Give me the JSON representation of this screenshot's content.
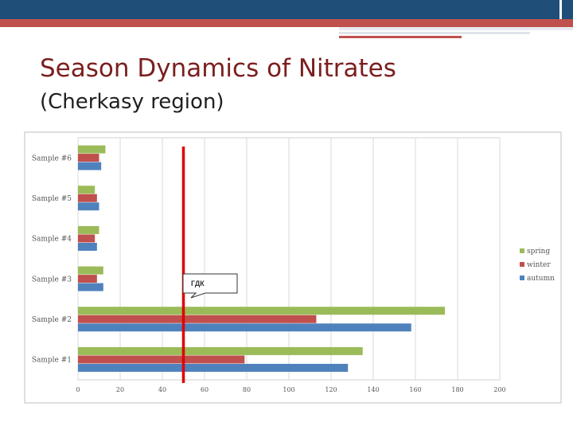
{
  "slide": {
    "title_line1": "Season Dynamics of Nitrates",
    "title_line2": "(Cherkasy region)"
  },
  "chart_data": {
    "type": "bar",
    "orientation": "horizontal",
    "categories": [
      "Sample #1",
      "Sample #2",
      "Sample #3",
      "Sample #4",
      "Sample #5",
      "Sample #6"
    ],
    "series": [
      {
        "name": "spring",
        "color": "#9bbb59",
        "values": [
          135,
          174,
          12,
          10,
          8,
          13
        ]
      },
      {
        "name": "winter",
        "color": "#c0504d",
        "values": [
          79,
          113,
          9,
          8,
          9,
          10
        ]
      },
      {
        "name": "autumn",
        "color": "#4f81bd",
        "values": [
          128,
          158,
          12,
          9,
          10,
          11
        ]
      }
    ],
    "xlim": [
      0,
      200
    ],
    "xticks": [
      "0",
      "20",
      "40",
      "60",
      "80",
      "100",
      "120",
      "140",
      "160",
      "180",
      "200"
    ],
    "grid": true,
    "legend": "right",
    "reference_line": {
      "value": 50,
      "color": "#e00000",
      "label": "ГДК"
    }
  }
}
